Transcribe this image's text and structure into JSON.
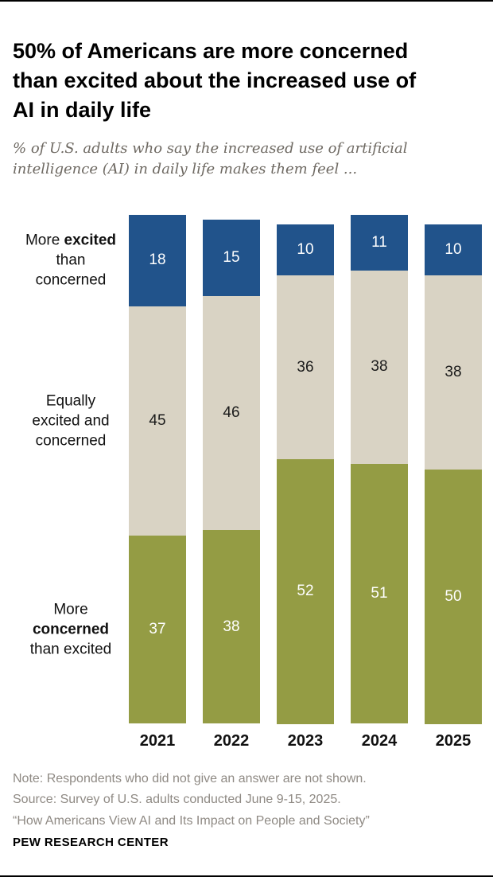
{
  "title_lines": [
    "50% of Americans are more concerned",
    "than excited about the increased use of",
    "AI in daily life"
  ],
  "subtitle_lines": [
    "% of U.S. adults who say the increased use of artificial",
    "intelligence (AI) in daily life makes them feel ..."
  ],
  "chart_data": {
    "type": "bar",
    "stacked": true,
    "orientation": "vertical",
    "unit": "%",
    "ylim": [
      0,
      100
    ],
    "legend_position": "left-of-bars",
    "categories": [
      "2021",
      "2022",
      "2023",
      "2024",
      "2025"
    ],
    "series": [
      {
        "name": "More excited than concerned",
        "color": "#21538B",
        "label_color": "#FFFFFF",
        "values": [
          18,
          15,
          10,
          11,
          10
        ]
      },
      {
        "name": "Equally excited and concerned",
        "color": "#D9D3C4",
        "label_color": "#1A1A1A",
        "values": [
          45,
          46,
          36,
          38,
          38
        ]
      },
      {
        "name": "More concerned than excited",
        "color": "#949C44",
        "label_color": "#FFFFFF",
        "values": [
          37,
          38,
          52,
          51,
          50
        ]
      }
    ],
    "row_labels": [
      {
        "lines": [
          "More **excited**",
          "than",
          "concerned"
        ]
      },
      {
        "lines": [
          "Equally",
          "excited and",
          "concerned"
        ]
      },
      {
        "lines": [
          "More",
          "**concerned**",
          "than excited"
        ]
      }
    ]
  },
  "footer": {
    "note": "Note: Respondents who did not give an answer are not shown.",
    "source": "Source: Survey of U.S. adults conducted June 9-15, 2025.",
    "citation": "“How Americans View AI and Its Impact on People and Society”",
    "brand": "PEW RESEARCH CENTER"
  }
}
